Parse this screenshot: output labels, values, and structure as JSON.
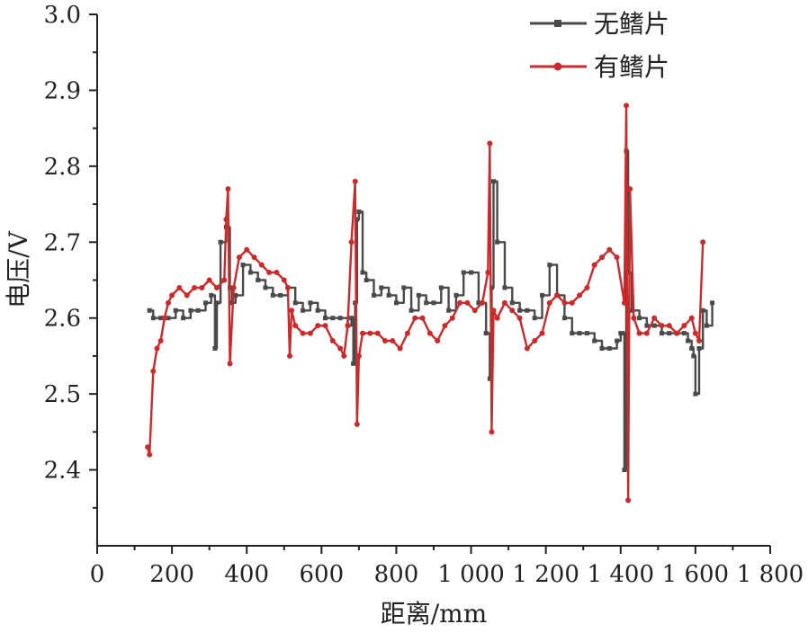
{
  "chart_data": {
    "type": "line",
    "xlabel": "距离/mm",
    "ylabel": "电压/V",
    "xlim": [
      0,
      1800
    ],
    "ylim": [
      2.3,
      3.0
    ],
    "x_ticks": [
      0,
      200,
      400,
      600,
      800,
      1000,
      1200,
      1400,
      1600,
      1800
    ],
    "x_tick_labels": [
      "0",
      "200",
      "400",
      "600",
      "800",
      "1 000",
      "1 200",
      "1 400",
      "1 600",
      "1 800"
    ],
    "y_ticks": [
      2.4,
      2.5,
      2.6,
      2.7,
      2.8,
      2.9,
      3.0
    ],
    "y_tick_labels": [
      "2.4",
      "2.5",
      "2.6",
      "2.7",
      "2.8",
      "2.9",
      "3.0"
    ],
    "grid": false,
    "legend_position": "top-right",
    "colors": {
      "series1": "#4a4a4a",
      "series2": "#cc2a2a",
      "axis": "#222222"
    },
    "series": [
      {
        "name": "无鳍片",
        "marker": "square",
        "x": [
          140,
          150,
          170,
          190,
          210,
          230,
          250,
          270,
          290,
          305,
          315,
          320,
          330,
          345,
          355,
          360,
          370,
          390,
          410,
          430,
          450,
          470,
          490,
          510,
          530,
          550,
          570,
          590,
          610,
          630,
          650,
          670,
          680,
          685,
          690,
          695,
          700,
          710,
          720,
          740,
          760,
          780,
          800,
          820,
          840,
          860,
          880,
          900,
          920,
          940,
          960,
          980,
          1000,
          1020,
          1040,
          1050,
          1055,
          1060,
          1070,
          1090,
          1110,
          1130,
          1150,
          1170,
          1190,
          1210,
          1230,
          1250,
          1270,
          1290,
          1310,
          1330,
          1350,
          1370,
          1390,
          1400,
          1405,
          1410,
          1415,
          1420,
          1430,
          1450,
          1470,
          1490,
          1510,
          1530,
          1550,
          1570,
          1580,
          1590,
          1595,
          1600,
          1610,
          1620,
          1630,
          1645
        ],
        "y": [
          2.61,
          2.6,
          2.6,
          2.6,
          2.61,
          2.6,
          2.61,
          2.61,
          2.62,
          2.63,
          2.56,
          2.62,
          2.7,
          2.72,
          2.64,
          2.62,
          2.63,
          2.67,
          2.66,
          2.65,
          2.64,
          2.63,
          2.63,
          2.64,
          2.62,
          2.61,
          2.62,
          2.61,
          2.6,
          2.6,
          2.6,
          2.59,
          2.6,
          2.54,
          2.62,
          2.73,
          2.74,
          2.66,
          2.65,
          2.63,
          2.64,
          2.63,
          2.62,
          2.64,
          2.61,
          2.63,
          2.62,
          2.62,
          2.64,
          2.61,
          2.63,
          2.66,
          2.66,
          2.62,
          2.58,
          2.52,
          2.64,
          2.78,
          2.7,
          2.64,
          2.62,
          2.61,
          2.61,
          2.6,
          2.63,
          2.67,
          2.63,
          2.6,
          2.58,
          2.58,
          2.58,
          2.57,
          2.56,
          2.56,
          2.57,
          2.58,
          2.58,
          2.4,
          2.82,
          2.66,
          2.61,
          2.6,
          2.59,
          2.59,
          2.58,
          2.58,
          2.58,
          2.58,
          2.57,
          2.56,
          2.55,
          2.5,
          2.56,
          2.61,
          2.59,
          2.62
        ]
      },
      {
        "name": "有鳍片",
        "marker": "circle",
        "x": [
          135,
          140,
          150,
          160,
          170,
          180,
          190,
          200,
          220,
          240,
          260,
          280,
          300,
          320,
          340,
          345,
          350,
          355,
          365,
          380,
          400,
          420,
          440,
          460,
          480,
          500,
          510,
          515,
          520,
          530,
          550,
          570,
          590,
          610,
          630,
          650,
          660,
          670,
          680,
          690,
          695,
          700,
          710,
          730,
          750,
          770,
          790,
          810,
          830,
          850,
          870,
          890,
          910,
          930,
          950,
          970,
          990,
          1010,
          1030,
          1045,
          1050,
          1055,
          1060,
          1070,
          1090,
          1110,
          1130,
          1150,
          1170,
          1190,
          1210,
          1230,
          1250,
          1270,
          1290,
          1310,
          1330,
          1350,
          1370,
          1390,
          1410,
          1415,
          1420,
          1425,
          1435,
          1450,
          1470,
          1490,
          1510,
          1530,
          1550,
          1570,
          1590,
          1600,
          1610,
          1620
        ],
        "y": [
          2.43,
          2.42,
          2.53,
          2.56,
          2.57,
          2.6,
          2.62,
          2.63,
          2.64,
          2.63,
          2.64,
          2.64,
          2.65,
          2.64,
          2.65,
          2.73,
          2.77,
          2.54,
          2.64,
          2.68,
          2.69,
          2.68,
          2.67,
          2.66,
          2.66,
          2.65,
          2.64,
          2.55,
          2.61,
          2.59,
          2.58,
          2.58,
          2.59,
          2.59,
          2.57,
          2.56,
          2.55,
          2.59,
          2.7,
          2.78,
          2.46,
          2.55,
          2.58,
          2.58,
          2.58,
          2.57,
          2.57,
          2.56,
          2.58,
          2.6,
          2.6,
          2.58,
          2.57,
          2.59,
          2.6,
          2.62,
          2.62,
          2.61,
          2.62,
          2.66,
          2.83,
          2.45,
          2.61,
          2.6,
          2.62,
          2.61,
          2.6,
          2.56,
          2.57,
          2.58,
          2.62,
          2.63,
          2.62,
          2.62,
          2.63,
          2.64,
          2.67,
          2.68,
          2.69,
          2.68,
          2.62,
          2.88,
          2.36,
          2.77,
          2.6,
          2.58,
          2.58,
          2.6,
          2.59,
          2.59,
          2.58,
          2.59,
          2.6,
          2.58,
          2.57,
          2.7
        ]
      }
    ]
  }
}
